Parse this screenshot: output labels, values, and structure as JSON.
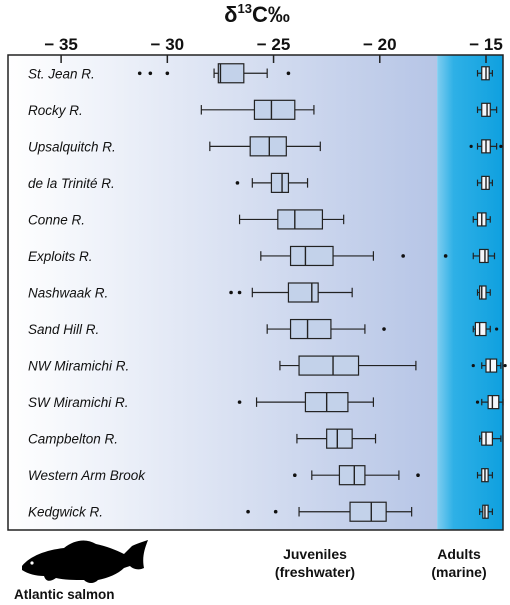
{
  "chart_data": {
    "type": "boxplot",
    "title": "",
    "xlabel_main": "δ",
    "xlabel_sup": "13",
    "xlabel_rest": "C‰",
    "xlim": [
      -37.5,
      -14.2
    ],
    "ticks": [
      {
        "value": -35,
        "label": "− 35"
      },
      {
        "value": -30,
        "label": "− 30"
      },
      {
        "value": -25,
        "label": "− 25"
      },
      {
        "value": -20,
        "label": "− 20"
      },
      {
        "value": -15,
        "label": "− 15"
      }
    ],
    "marine_boundary": -17.3,
    "rivers": [
      {
        "name": "St. Jean R.",
        "juvenile": {
          "wlo": -27.8,
          "q1": -27.6,
          "med": -27.5,
          "q3": -26.4,
          "whi": -25.3,
          "outliers": [
            -31.3,
            -30.8,
            -30.0,
            -24.3
          ]
        },
        "adult": {
          "wlo": -15.4,
          "q1": -15.2,
          "med": -15.0,
          "q3": -14.85,
          "whi": -14.7,
          "outliers": []
        }
      },
      {
        "name": "Rocky R.",
        "juvenile": {
          "wlo": -28.4,
          "q1": -25.9,
          "med": -25.1,
          "q3": -24.0,
          "whi": -23.1,
          "outliers": []
        },
        "adult": {
          "wlo": -15.4,
          "q1": -15.2,
          "med": -14.95,
          "q3": -14.8,
          "whi": -14.5,
          "outliers": []
        }
      },
      {
        "name": "Upsalquitch R.",
        "juvenile": {
          "wlo": -28.0,
          "q1": -26.1,
          "med": -25.2,
          "q3": -24.4,
          "whi": -22.8,
          "outliers": []
        },
        "adult": {
          "wlo": -15.4,
          "q1": -15.2,
          "med": -15.0,
          "q3": -14.8,
          "whi": -14.5,
          "outliers": [
            -15.7,
            -14.3
          ]
        }
      },
      {
        "name": "de la Trinité R.",
        "juvenile": {
          "wlo": -26.0,
          "q1": -25.1,
          "med": -24.6,
          "q3": -24.3,
          "whi": -23.4,
          "outliers": [
            -26.7
          ]
        },
        "adult": {
          "wlo": -15.4,
          "q1": -15.2,
          "med": -15.0,
          "q3": -14.85,
          "whi": -14.7,
          "outliers": []
        }
      },
      {
        "name": "Conne R.",
        "juvenile": {
          "wlo": -26.6,
          "q1": -24.8,
          "med": -24.0,
          "q3": -22.7,
          "whi": -21.7,
          "outliers": []
        },
        "adult": {
          "wlo": -15.6,
          "q1": -15.4,
          "med": -15.2,
          "q3": -15.0,
          "whi": -14.8,
          "outliers": []
        }
      },
      {
        "name": "Exploits R.",
        "juvenile": {
          "wlo": -25.6,
          "q1": -24.2,
          "med": -23.5,
          "q3": -22.2,
          "whi": -20.3,
          "outliers": [
            -18.9,
            -16.9
          ]
        },
        "adult": {
          "wlo": -15.6,
          "q1": -15.3,
          "med": -15.05,
          "q3": -14.9,
          "whi": -14.6,
          "outliers": []
        }
      },
      {
        "name": "Nashwaak R.",
        "juvenile": {
          "wlo": -26.0,
          "q1": -24.3,
          "med": -23.2,
          "q3": -22.9,
          "whi": -21.3,
          "outliers": [
            -27.0,
            -26.6
          ]
        },
        "adult": {
          "wlo": -15.4,
          "q1": -15.3,
          "med": -15.2,
          "q3": -15.0,
          "whi": -14.8,
          "outliers": []
        }
      },
      {
        "name": "Sand Hill R.",
        "juvenile": {
          "wlo": -25.3,
          "q1": -24.2,
          "med": -23.4,
          "q3": -22.3,
          "whi": -20.7,
          "outliers": [
            -19.8
          ]
        },
        "adult": {
          "wlo": -15.6,
          "q1": -15.5,
          "med": -15.3,
          "q3": -15.0,
          "whi": -14.8,
          "outliers": [
            -14.5
          ]
        }
      },
      {
        "name": "NW Miramichi R.",
        "juvenile": {
          "wlo": -24.7,
          "q1": -23.8,
          "med": -22.2,
          "q3": -21.0,
          "whi": -18.3,
          "outliers": []
        },
        "adult": {
          "wlo": -15.2,
          "q1": -15.0,
          "med": -14.8,
          "q3": -14.5,
          "whi": -14.3,
          "outliers": [
            -15.6,
            -14.1
          ]
        }
      },
      {
        "name": "SW Miramichi R.",
        "juvenile": {
          "wlo": -25.8,
          "q1": -23.5,
          "med": -22.5,
          "q3": -21.5,
          "whi": -20.3,
          "outliers": [
            -26.6
          ]
        },
        "adult": {
          "wlo": -15.2,
          "q1": -14.9,
          "med": -14.7,
          "q3": -14.4,
          "whi": -14.2,
          "outliers": [
            -15.4
          ]
        }
      },
      {
        "name": "Campbelton R.",
        "juvenile": {
          "wlo": -23.9,
          "q1": -22.5,
          "med": -22.0,
          "q3": -21.3,
          "whi": -20.2,
          "outliers": []
        },
        "adult": {
          "wlo": -15.3,
          "q1": -15.2,
          "med": -15.0,
          "q3": -14.7,
          "whi": -14.3,
          "outliers": []
        }
      },
      {
        "name": "Western Arm Brook",
        "juvenile": {
          "wlo": -23.2,
          "q1": -21.9,
          "med": -21.2,
          "q3": -20.7,
          "whi": -19.1,
          "outliers": [
            -24.0,
            -18.2
          ]
        },
        "adult": {
          "wlo": -15.4,
          "q1": -15.2,
          "med": -15.05,
          "q3": -14.9,
          "whi": -14.7,
          "outliers": []
        }
      },
      {
        "name": "Kedgwick R.",
        "juvenile": {
          "wlo": -23.8,
          "q1": -21.4,
          "med": -20.4,
          "q3": -19.7,
          "whi": -18.5,
          "outliers": [
            -26.2,
            -24.9
          ]
        },
        "adult": {
          "wlo": -15.3,
          "q1": -15.15,
          "med": -15.05,
          "q3": -14.9,
          "whi": -14.7,
          "outliers": []
        }
      }
    ]
  },
  "footer": {
    "juveniles_line1": "Juveniles",
    "juveniles_line2": "(freshwater)",
    "adults_line1": "Adults",
    "adults_line2": "(marine)",
    "species": "Atlantic salmon"
  },
  "colors": {
    "box_fill": "#c3d2ea",
    "box_stroke": "#222222",
    "marine": "#1aa3e0",
    "freshwater_end": "#b6c5e6"
  }
}
